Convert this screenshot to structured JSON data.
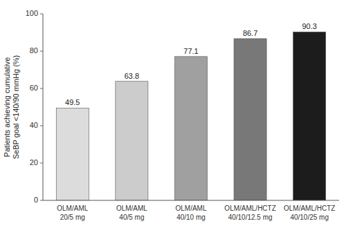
{
  "chart_data": {
    "type": "bar",
    "y_label": "Patients achieving cumulative\nSeBP goal <140/90 mmHg (%)",
    "categories": [
      "OLM/AML\n20/5 mg",
      "OLM/AML\n40/5 mg",
      "OLM/AML\n40/10 mg",
      "OLM/AML/HCTZ\n40/10/12.5 mg",
      "OLM/AML/HCTZ\n40/10/25 mg"
    ],
    "values": [
      49.5,
      63.8,
      77.1,
      86.7,
      90.3
    ],
    "colors": [
      "#dcdcdc",
      "#cccccc",
      "#a0a0a0",
      "#787878",
      "#1c1c1c"
    ],
    "ylim": [
      0,
      100
    ],
    "yticks": [
      0,
      20,
      40,
      60,
      80,
      100
    ],
    "grid": false,
    "data_labels": true
  }
}
